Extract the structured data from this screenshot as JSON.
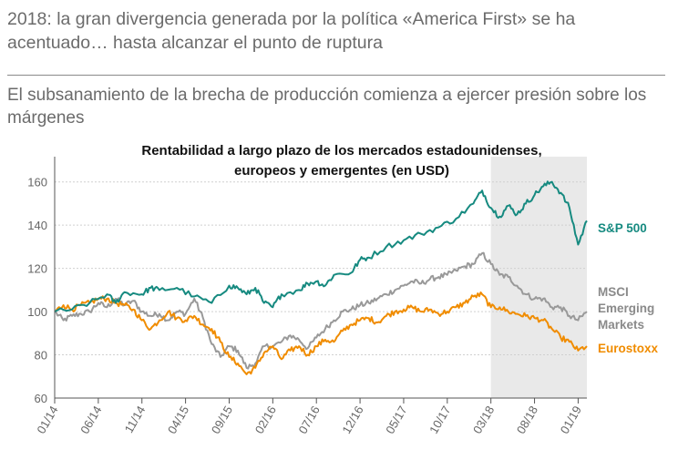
{
  "headline": "2018: la gran divergencia generada por la política «America First» se ha acentuado… hasta alcanzar el punto de ruptura",
  "subtitle": "El subsanamiento de la brecha de producción comienza a ejercer presión sobre los márgenes",
  "chart_data": {
    "type": "line",
    "title_lines": [
      "Rentabilidad a largo plazo de los mercados estadounidenses,",
      "europeos y emergentes (en USD)"
    ],
    "x_ticks": [
      "01/14",
      "06/14",
      "11/14",
      "04/15",
      "09/15",
      "02/16",
      "07/16",
      "12/16",
      "05/17",
      "10/17",
      "03/18",
      "08/18",
      "01/19"
    ],
    "x_range": [
      0,
      61
    ],
    "ylim": [
      60,
      170
    ],
    "y_ticks": [
      60,
      80,
      100,
      120,
      140,
      160
    ],
    "shaded_region": {
      "from": 50,
      "to": 61,
      "color": "#e9e9e9"
    },
    "series": [
      {
        "name": "S&P 500",
        "legend_lines": [
          "S&P 500"
        ],
        "color": "#168a80",
        "anchors": [
          [
            0,
            100
          ],
          [
            2,
            101
          ],
          [
            4,
            104
          ],
          [
            6,
            108
          ],
          [
            7,
            104
          ],
          [
            8,
            109
          ],
          [
            10,
            108
          ],
          [
            11,
            111
          ],
          [
            12,
            110
          ],
          [
            14,
            111
          ],
          [
            16,
            107
          ],
          [
            18,
            104
          ],
          [
            20,
            112
          ],
          [
            21,
            111
          ],
          [
            22,
            108
          ],
          [
            23,
            111
          ],
          [
            24,
            104
          ],
          [
            25,
            102
          ],
          [
            26,
            108
          ],
          [
            28,
            110
          ],
          [
            29,
            113
          ],
          [
            30,
            114
          ],
          [
            31,
            112
          ],
          [
            32,
            117
          ],
          [
            34,
            118
          ],
          [
            35,
            124
          ],
          [
            36,
            125
          ],
          [
            38,
            130
          ],
          [
            40,
            133
          ],
          [
            42,
            136
          ],
          [
            44,
            139
          ],
          [
            46,
            143
          ],
          [
            48,
            150
          ],
          [
            49,
            156
          ],
          [
            50,
            148
          ],
          [
            51,
            144
          ],
          [
            52,
            149
          ],
          [
            53,
            145
          ],
          [
            54,
            150
          ],
          [
            55,
            154
          ],
          [
            56,
            158
          ],
          [
            57,
            160
          ],
          [
            58,
            155
          ],
          [
            59,
            148
          ],
          [
            60,
            131
          ],
          [
            61,
            142
          ]
        ]
      },
      {
        "name": "MSCI Emerging Markets",
        "legend_lines": [
          "MSCI",
          "Emerging",
          "Markets"
        ],
        "color": "#999999",
        "anchors": [
          [
            0,
            100
          ],
          [
            1,
            96
          ],
          [
            2,
            98
          ],
          [
            3,
            99
          ],
          [
            4,
            100
          ],
          [
            5,
            104
          ],
          [
            6,
            102
          ],
          [
            7,
            106
          ],
          [
            8,
            103
          ],
          [
            9,
            105
          ],
          [
            10,
            100
          ],
          [
            11,
            98
          ],
          [
            12,
            99
          ],
          [
            13,
            96
          ],
          [
            14,
            100
          ],
          [
            15,
            99
          ],
          [
            16,
            106
          ],
          [
            17,
            97
          ],
          [
            18,
            85
          ],
          [
            19,
            79
          ],
          [
            20,
            84
          ],
          [
            21,
            82
          ],
          [
            22,
            74
          ],
          [
            23,
            76
          ],
          [
            24,
            84
          ],
          [
            25,
            84
          ],
          [
            26,
            86
          ],
          [
            27,
            89
          ],
          [
            28,
            87
          ],
          [
            29,
            83
          ],
          [
            30,
            88
          ],
          [
            31,
            92
          ],
          [
            32,
            96
          ],
          [
            33,
            100
          ],
          [
            34,
            101
          ],
          [
            35,
            103
          ],
          [
            36,
            104
          ],
          [
            37,
            106
          ],
          [
            38,
            108
          ],
          [
            39,
            110
          ],
          [
            40,
            112
          ],
          [
            41,
            114
          ],
          [
            42,
            113
          ],
          [
            43,
            115
          ],
          [
            44,
            116
          ],
          [
            45,
            117
          ],
          [
            46,
            119
          ],
          [
            47,
            121
          ],
          [
            48,
            122
          ],
          [
            49,
            127
          ],
          [
            50,
            122
          ],
          [
            51,
            117
          ],
          [
            52,
            116
          ],
          [
            53,
            112
          ],
          [
            54,
            108
          ],
          [
            55,
            106
          ],
          [
            56,
            106
          ],
          [
            57,
            102
          ],
          [
            58,
            102
          ],
          [
            59,
            98
          ],
          [
            60,
            96
          ],
          [
            61,
            100
          ]
        ]
      },
      {
        "name": "Eurostoxx",
        "legend_lines": [
          "Eurostoxx"
        ],
        "color": "#f08c00",
        "anchors": [
          [
            0,
            100
          ],
          [
            1,
            103
          ],
          [
            2,
            101
          ],
          [
            3,
            103
          ],
          [
            4,
            104
          ],
          [
            5,
            106
          ],
          [
            6,
            106
          ],
          [
            7,
            104
          ],
          [
            8,
            103
          ],
          [
            9,
            101
          ],
          [
            10,
            96
          ],
          [
            11,
            92
          ],
          [
            12,
            96
          ],
          [
            13,
            100
          ],
          [
            14,
            97
          ],
          [
            15,
            96
          ],
          [
            16,
            98
          ],
          [
            17,
            94
          ],
          [
            18,
            92
          ],
          [
            19,
            86
          ],
          [
            20,
            79
          ],
          [
            21,
            76
          ],
          [
            22,
            71
          ],
          [
            23,
            74
          ],
          [
            24,
            81
          ],
          [
            25,
            84
          ],
          [
            26,
            78
          ],
          [
            27,
            82
          ],
          [
            28,
            84
          ],
          [
            29,
            80
          ],
          [
            30,
            84
          ],
          [
            31,
            87
          ],
          [
            32,
            86
          ],
          [
            33,
            91
          ],
          [
            34,
            94
          ],
          [
            35,
            96
          ],
          [
            36,
            97
          ],
          [
            37,
            95
          ],
          [
            38,
            98
          ],
          [
            39,
            100
          ],
          [
            40,
            101
          ],
          [
            41,
            102
          ],
          [
            42,
            100
          ],
          [
            43,
            101
          ],
          [
            44,
            99
          ],
          [
            45,
            100
          ],
          [
            46,
            102
          ],
          [
            47,
            104
          ],
          [
            48,
            107
          ],
          [
            49,
            108
          ],
          [
            50,
            102
          ],
          [
            51,
            102
          ],
          [
            52,
            100
          ],
          [
            53,
            99
          ],
          [
            54,
            98
          ],
          [
            55,
            97
          ],
          [
            56,
            96
          ],
          [
            57,
            92
          ],
          [
            58,
            88
          ],
          [
            59,
            86
          ],
          [
            60,
            82
          ],
          [
            61,
            84
          ]
        ]
      }
    ]
  }
}
